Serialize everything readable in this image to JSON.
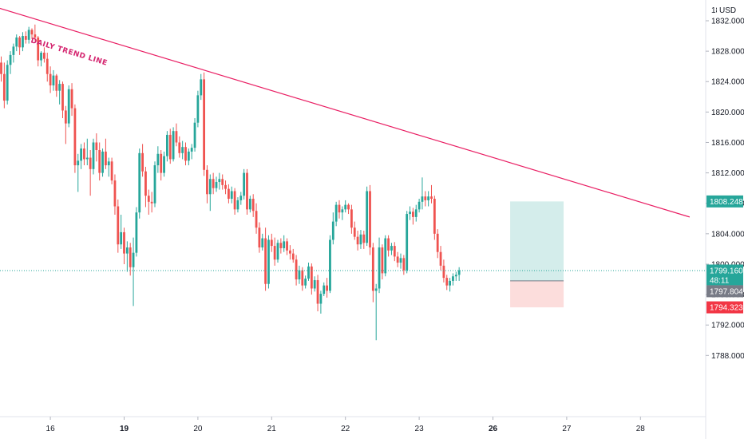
{
  "chart_data": {
    "type": "candlestick",
    "currency": "USD",
    "price_axis": {
      "ylim": [
        1786.5,
        1834.8
      ],
      "ticks": [
        "1832.000",
        "1828.000",
        "1824.000",
        "1820.000",
        "1816.000",
        "1812.000",
        "1808.000",
        "1804.000",
        "1800.000",
        "1796.000",
        "1792.000",
        "1788.000"
      ],
      "tick_values": [
        1832,
        1828,
        1824,
        1820,
        1816,
        1812,
        1808,
        1804,
        1800,
        1796,
        1792,
        1788
      ],
      "top_partial_label": "18"
    },
    "time_axis": {
      "labels": [
        {
          "text": "16",
          "bar": 16,
          "bold": false
        },
        {
          "text": "19",
          "bar": 40,
          "bold": true
        },
        {
          "text": "20",
          "bar": 64,
          "bold": false
        },
        {
          "text": "21",
          "bar": 88,
          "bold": false
        },
        {
          "text": "22",
          "bar": 112,
          "bold": false
        },
        {
          "text": "23",
          "bar": 136,
          "bold": false
        },
        {
          "text": "26",
          "bar": 160,
          "bold": true
        },
        {
          "text": "27",
          "bar": 184,
          "bold": false
        },
        {
          "text": "28",
          "bar": 208,
          "bold": false
        }
      ]
    },
    "colors": {
      "up": "#26a69a",
      "down": "#ef5350",
      "trend": "#e91e63",
      "current": "#26a69a"
    },
    "trend_line": {
      "label": "DAILY TREND LINE",
      "start": {
        "bar": -1,
        "price": 1833.7
      },
      "end": {
        "bar": 224,
        "price": 1806.2
      }
    },
    "current_price": {
      "value": 1799.16,
      "label": "1799.160",
      "countdown": "48:11"
    },
    "position": {
      "type": "long",
      "start_bar": 166,
      "end_bar": 183,
      "entry": 1797.804,
      "entry_label": "1797.804",
      "target": 1808.248,
      "target_label": "1808.248",
      "stop": 1794.323,
      "stop_label": "1794.323"
    },
    "candles": [
      [
        1826.5,
        1827.3,
        1824.0,
        1825.0
      ],
      [
        1825.0,
        1826.5,
        1820.5,
        1821.5
      ],
      [
        1821.5,
        1826.8,
        1821.0,
        1826.2
      ],
      [
        1826.2,
        1828.0,
        1825.0,
        1827.5
      ],
      [
        1827.5,
        1829.0,
        1826.5,
        1828.6
      ],
      [
        1828.6,
        1830.2,
        1828.0,
        1829.8
      ],
      [
        1829.8,
        1830.0,
        1827.5,
        1828.5
      ],
      [
        1828.5,
        1830.5,
        1828.0,
        1830.0
      ],
      [
        1830.0,
        1830.6,
        1829.0,
        1829.5
      ],
      [
        1829.5,
        1831.2,
        1829.0,
        1830.8
      ],
      [
        1830.8,
        1831.0,
        1829.6,
        1830.2
      ],
      [
        1830.2,
        1831.5,
        1829.4,
        1829.8
      ],
      [
        1829.8,
        1830.0,
        1826.0,
        1826.8
      ],
      [
        1826.8,
        1828.0,
        1826.0,
        1827.8
      ],
      [
        1827.8,
        1828.5,
        1826.5,
        1827.0
      ],
      [
        1827.0,
        1827.8,
        1824.0,
        1825.0
      ],
      [
        1825.0,
        1826.0,
        1822.5,
        1823.5
      ],
      [
        1823.5,
        1825.5,
        1822.8,
        1824.8
      ],
      [
        1824.8,
        1825.0,
        1822.0,
        1822.8
      ],
      [
        1822.8,
        1824.2,
        1821.0,
        1823.7
      ],
      [
        1823.7,
        1824.0,
        1819.2,
        1820.2
      ],
      [
        1820.2,
        1820.8,
        1815.8,
        1818.5
      ],
      [
        1818.5,
        1823.5,
        1818.0,
        1823.0
      ],
      [
        1823.0,
        1823.8,
        1819.5,
        1820.5
      ],
      [
        1820.5,
        1821.0,
        1812.0,
        1813.0
      ],
      [
        1813.0,
        1814.5,
        1809.5,
        1813.6
      ],
      [
        1813.6,
        1815.8,
        1812.5,
        1815.2
      ],
      [
        1815.2,
        1816.0,
        1813.0,
        1813.8
      ],
      [
        1813.8,
        1816.5,
        1813.0,
        1814.0
      ],
      [
        1814.0,
        1815.0,
        1809.0,
        1812.5
      ],
      [
        1812.5,
        1816.5,
        1811.8,
        1816.0
      ],
      [
        1816.0,
        1817.2,
        1813.5,
        1815.0
      ],
      [
        1815.0,
        1816.0,
        1811.0,
        1812.0
      ],
      [
        1812.0,
        1815.2,
        1811.5,
        1814.8
      ],
      [
        1814.8,
        1816.5,
        1812.5,
        1813.0
      ],
      [
        1813.0,
        1814.0,
        1811.5,
        1813.5
      ],
      [
        1813.5,
        1814.0,
        1810.5,
        1811.0
      ],
      [
        1811.0,
        1811.8,
        1806.5,
        1807.6
      ],
      [
        1807.6,
        1808.5,
        1801.5,
        1802.6
      ],
      [
        1802.6,
        1806.5,
        1802.0,
        1804.2
      ],
      [
        1804.2,
        1804.8,
        1800.0,
        1801.4
      ],
      [
        1801.4,
        1803.0,
        1799.0,
        1802.2
      ],
      [
        1802.2,
        1802.8,
        1798.5,
        1799.6
      ],
      [
        1799.6,
        1803.5,
        1794.5,
        1801.5
      ],
      [
        1801.5,
        1807.5,
        1801.0,
        1806.8
      ],
      [
        1806.8,
        1815.2,
        1806.0,
        1814.6
      ],
      [
        1814.6,
        1815.8,
        1811.5,
        1812.2
      ],
      [
        1812.2,
        1812.8,
        1807.5,
        1809.0
      ],
      [
        1809.0,
        1809.8,
        1806.5,
        1808.2
      ],
      [
        1808.2,
        1809.5,
        1806.8,
        1808.0
      ],
      [
        1808.0,
        1813.5,
        1807.5,
        1813.0
      ],
      [
        1813.0,
        1815.5,
        1812.0,
        1814.5
      ],
      [
        1814.5,
        1815.0,
        1811.0,
        1812.0
      ],
      [
        1812.0,
        1814.8,
        1811.5,
        1814.2
      ],
      [
        1814.2,
        1817.5,
        1813.5,
        1817.0
      ],
      [
        1817.0,
        1817.8,
        1813.2,
        1813.8
      ],
      [
        1813.8,
        1818.0,
        1813.5,
        1817.5
      ],
      [
        1817.5,
        1818.5,
        1815.5,
        1816.0
      ],
      [
        1816.0,
        1816.8,
        1814.0,
        1814.6
      ],
      [
        1814.6,
        1816.2,
        1813.8,
        1815.4
      ],
      [
        1815.4,
        1816.0,
        1813.0,
        1813.6
      ],
      [
        1813.6,
        1815.2,
        1813.0,
        1814.8
      ],
      [
        1814.8,
        1815.8,
        1813.8,
        1815.3
      ],
      [
        1815.3,
        1819.2,
        1814.8,
        1818.6
      ],
      [
        1818.6,
        1822.8,
        1818.0,
        1822.2
      ],
      [
        1822.2,
        1825.0,
        1821.6,
        1824.3
      ],
      [
        1824.3,
        1825.2,
        1811.6,
        1812.4
      ],
      [
        1812.4,
        1813.0,
        1808.0,
        1809.2
      ],
      [
        1809.2,
        1811.8,
        1807.0,
        1811.2
      ],
      [
        1811.2,
        1812.0,
        1809.2,
        1810.0
      ],
      [
        1810.0,
        1811.5,
        1809.5,
        1810.8
      ],
      [
        1810.8,
        1812.0,
        1809.8,
        1811.2
      ],
      [
        1811.2,
        1811.8,
        1809.8,
        1810.4
      ],
      [
        1810.4,
        1811.0,
        1809.2,
        1809.9
      ],
      [
        1809.9,
        1810.5,
        1808.0,
        1808.6
      ],
      [
        1808.6,
        1810.2,
        1808.0,
        1809.6
      ],
      [
        1809.6,
        1810.0,
        1806.5,
        1807.2
      ],
      [
        1807.2,
        1808.8,
        1806.8,
        1808.4
      ],
      [
        1808.4,
        1809.5,
        1807.8,
        1809.0
      ],
      [
        1809.0,
        1812.5,
        1808.5,
        1812.0
      ],
      [
        1812.0,
        1812.5,
        1806.5,
        1807.2
      ],
      [
        1807.2,
        1809.0,
        1806.8,
        1808.6
      ],
      [
        1808.6,
        1809.2,
        1806.2,
        1807.0
      ],
      [
        1807.0,
        1808.0,
        1804.0,
        1804.8
      ],
      [
        1804.8,
        1805.5,
        1801.5,
        1802.2
      ],
      [
        1802.2,
        1804.0,
        1801.8,
        1803.4
      ],
      [
        1803.4,
        1804.8,
        1796.5,
        1797.4
      ],
      [
        1797.4,
        1803.8,
        1796.8,
        1803.2
      ],
      [
        1803.2,
        1804.0,
        1801.6,
        1802.4
      ],
      [
        1802.4,
        1803.5,
        1799.8,
        1800.6
      ],
      [
        1800.6,
        1803.2,
        1800.2,
        1802.8
      ],
      [
        1802.8,
        1803.4,
        1801.4,
        1802.1
      ],
      [
        1802.1,
        1803.8,
        1801.6,
        1803.0
      ],
      [
        1803.0,
        1803.4,
        1801.2,
        1801.8
      ],
      [
        1801.8,
        1802.5,
        1800.6,
        1801.4
      ],
      [
        1801.4,
        1802.0,
        1800.2,
        1800.6
      ],
      [
        1800.6,
        1801.2,
        1797.2,
        1798.0
      ],
      [
        1798.0,
        1799.8,
        1797.4,
        1799.2
      ],
      [
        1799.2,
        1799.6,
        1796.5,
        1797.2
      ],
      [
        1797.2,
        1798.5,
        1796.8,
        1798.1
      ],
      [
        1798.1,
        1800.2,
        1797.8,
        1799.7
      ],
      [
        1799.7,
        1800.1,
        1796.0,
        1796.8
      ],
      [
        1796.8,
        1798.4,
        1796.4,
        1797.9
      ],
      [
        1797.9,
        1798.6,
        1793.8,
        1794.8
      ],
      [
        1794.8,
        1796.5,
        1793.5,
        1796.1
      ],
      [
        1796.1,
        1797.6,
        1795.8,
        1797.2
      ],
      [
        1797.2,
        1798.2,
        1795.6,
        1796.5
      ],
      [
        1796.5,
        1803.8,
        1796.2,
        1803.2
      ],
      [
        1803.2,
        1806.8,
        1802.6,
        1805.6
      ],
      [
        1805.6,
        1808.2,
        1805.0,
        1807.8
      ],
      [
        1807.8,
        1808.4,
        1806.0,
        1806.8
      ],
      [
        1806.8,
        1807.6,
        1805.8,
        1807.2
      ],
      [
        1807.2,
        1808.4,
        1806.8,
        1807.8
      ],
      [
        1807.8,
        1808.0,
        1806.6,
        1807.2
      ],
      [
        1807.2,
        1807.8,
        1804.0,
        1804.8
      ],
      [
        1804.8,
        1805.6,
        1803.2,
        1803.6
      ],
      [
        1803.6,
        1804.4,
        1801.8,
        1802.6
      ],
      [
        1802.6,
        1804.5,
        1802.0,
        1803.9
      ],
      [
        1803.9,
        1804.4,
        1802.0,
        1802.8
      ],
      [
        1802.8,
        1810.2,
        1802.4,
        1809.6
      ],
      [
        1809.6,
        1810.4,
        1801.2,
        1802.2
      ],
      [
        1802.2,
        1802.8,
        1795.0,
        1796.5
      ],
      [
        1796.5,
        1797.4,
        1790.0,
        1796.8
      ],
      [
        1796.8,
        1803.5,
        1796.2,
        1802.2
      ],
      [
        1802.2,
        1802.6,
        1798.0,
        1798.8
      ],
      [
        1798.8,
        1803.8,
        1798.4,
        1803.4
      ],
      [
        1803.4,
        1803.8,
        1801.0,
        1801.8
      ],
      [
        1801.8,
        1802.8,
        1801.2,
        1802.4
      ],
      [
        1802.4,
        1802.9,
        1800.4,
        1801.0
      ],
      [
        1801.0,
        1801.6,
        1799.6,
        1800.2
      ],
      [
        1800.2,
        1801.4,
        1799.4,
        1800.8
      ],
      [
        1800.8,
        1801.2,
        1798.6,
        1799.2
      ],
      [
        1799.2,
        1807.0,
        1798.8,
        1806.6
      ],
      [
        1806.6,
        1807.6,
        1805.8,
        1806.9
      ],
      [
        1806.9,
        1807.4,
        1805.2,
        1806.2
      ],
      [
        1806.2,
        1807.8,
        1805.6,
        1807.2
      ],
      [
        1807.2,
        1808.6,
        1806.8,
        1808.2
      ],
      [
        1808.2,
        1811.4,
        1807.2,
        1808.9
      ],
      [
        1808.9,
        1809.6,
        1807.6,
        1808.4
      ],
      [
        1808.4,
        1809.6,
        1807.6,
        1808.9
      ],
      [
        1808.9,
        1810.4,
        1808.0,
        1808.6
      ],
      [
        1808.6,
        1809.0,
        1803.2,
        1804.0
      ],
      [
        1804.0,
        1804.6,
        1800.8,
        1801.6
      ],
      [
        1801.6,
        1802.4,
        1799.2,
        1799.8
      ],
      [
        1799.8,
        1800.6,
        1797.6,
        1798.2
      ],
      [
        1798.2,
        1798.6,
        1796.6,
        1797.2
      ],
      [
        1797.2,
        1798.2,
        1796.4,
        1797.8
      ],
      [
        1797.8,
        1798.8,
        1797.2,
        1798.4
      ],
      [
        1798.4,
        1799.0,
        1797.8,
        1798.6
      ],
      [
        1798.6,
        1799.6,
        1797.8,
        1799.2
      ]
    ],
    "first_bar": 0
  }
}
